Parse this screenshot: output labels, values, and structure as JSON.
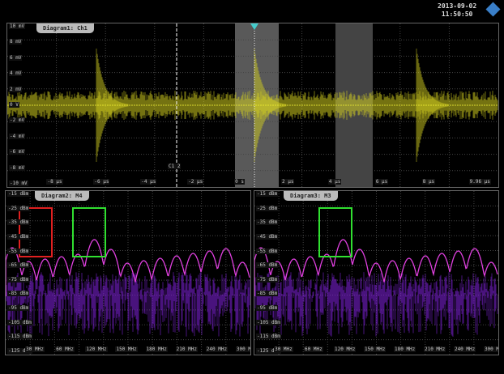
{
  "header": {
    "date": "2013-09-02",
    "time": "11:50:50",
    "logo_icon": "diamond-logo-icon"
  },
  "diagram1": {
    "title": "Diagram1: Ch1",
    "cursor_label": "C1 2",
    "trace_color": "#d4d020",
    "y_labels": [
      "10 mV",
      "8 mV",
      "6 mV",
      "4 mV",
      "2 mV",
      "0 V",
      "-2 mV",
      "-4 mV",
      "-6 mV",
      "-8 mV",
      "-10 mV"
    ],
    "x_labels": [
      "-8 µs",
      "-6 µs",
      "-4 µs",
      "-2 µs",
      "0 s",
      "2 µs",
      "4 µs",
      "6 µs",
      "8 µs",
      "9.96 µs"
    ]
  },
  "diagram2": {
    "title": "Diagram2: M4",
    "trace_color": "#e040e0",
    "y_labels": [
      "-15 dBm",
      "-25 dBm",
      "-35 dBm",
      "-45 dBm",
      "-55 dBm",
      "-65 dBm",
      "-75 dBm",
      "-85 dBm",
      "-95 dBm",
      "-105 dBm",
      "-115 dBm",
      "-125 dBm"
    ],
    "x_labels": [
      "30 MHz",
      "60 MHz",
      "120 MHz",
      "150 MHz",
      "180 MHz",
      "210 MHz",
      "240 MHz",
      "300 MHz"
    ],
    "markers": [
      {
        "color": "#e02020"
      },
      {
        "color": "#30e030"
      }
    ]
  },
  "diagram3": {
    "title": "Diagram3: M3",
    "trace_color": "#e040e0",
    "y_labels": [
      "-15 dBm",
      "-25 dBm",
      "-35 dBm",
      "-45 dBm",
      "-55 dBm",
      "-65 dBm",
      "-75 dBm",
      "-85 dBm",
      "-95 dBm",
      "-105 dBm",
      "-115 dBm",
      "-125 dBm"
    ],
    "x_labels": [
      "30 MHz",
      "60 MHz",
      "120 MHz",
      "150 MHz",
      "180 MHz",
      "210 MHz",
      "240 MHz",
      "300 MHz"
    ],
    "markers": [
      {
        "color": "#30e030"
      }
    ]
  }
}
